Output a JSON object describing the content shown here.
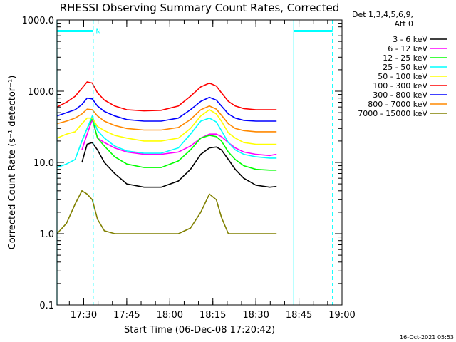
{
  "chart_data": {
    "type": "line",
    "title": "RHESSI Observing Summary Count Rates, Corrected",
    "xlabel": "Start Time (06-Dec-08 17:20:42)",
    "ylabel": "Corrected Count Rate (s⁻¹ detector⁻¹)",
    "y_scale": "log",
    "ylim": [
      0.1,
      1000.0
    ],
    "xlim": [
      17.345,
      19.0
    ],
    "grid": false,
    "legend_placement": "right",
    "legend_header": [
      "Det 1,3,4,5,6,9,",
      "Att 0"
    ],
    "yticks": [
      {
        "value": 1000.0,
        "label": "1000.0"
      },
      {
        "value": 100.0,
        "label": "100.0"
      },
      {
        "value": 10.0,
        "label": "10.0"
      },
      {
        "value": 1.0,
        "label": "1.0"
      },
      {
        "value": 0.1,
        "label": "0.1"
      }
    ],
    "xticks": [
      {
        "value": 17.5,
        "label": "17:30"
      },
      {
        "value": 17.75,
        "label": "17:45"
      },
      {
        "value": 18.0,
        "label": "18:00"
      },
      {
        "value": 18.25,
        "label": "18:15"
      },
      {
        "value": 18.5,
        "label": "18:30"
      },
      {
        "value": 18.75,
        "label": "18:45"
      },
      {
        "value": 19.0,
        "label": "19:00"
      }
    ],
    "x": [
      17.345,
      17.4,
      17.45,
      17.49,
      17.52,
      17.55,
      17.58,
      17.62,
      17.68,
      17.75,
      17.85,
      17.95,
      18.05,
      18.12,
      18.18,
      18.23,
      18.27,
      18.3,
      18.34,
      18.38,
      18.43,
      18.5,
      18.58,
      18.62
    ],
    "series": [
      {
        "name": "3 - 6 keV",
        "color": "#000000",
        "values": [
          null,
          null,
          null,
          10.0,
          18.0,
          19.0,
          15.0,
          10.0,
          7.0,
          5.0,
          4.5,
          4.5,
          5.5,
          8.0,
          13.0,
          16.0,
          16.5,
          15.0,
          11.0,
          8.0,
          6.0,
          4.8,
          4.5,
          4.6
        ]
      },
      {
        "name": "6 - 12 keV",
        "color": "#ff00ff",
        "values": [
          null,
          null,
          null,
          15.0,
          25.0,
          40.0,
          22.0,
          19.0,
          16.0,
          14.0,
          13.0,
          13.0,
          14.0,
          17.0,
          22.0,
          25.0,
          25.0,
          23.0,
          19.0,
          16.0,
          14.0,
          13.0,
          12.5,
          13.0
        ]
      },
      {
        "name": "12 - 25 keV",
        "color": "#00ff00",
        "values": [
          null,
          null,
          null,
          20.0,
          30.0,
          42.0,
          22.0,
          17.0,
          12.0,
          9.5,
          8.5,
          8.5,
          10.5,
          15.0,
          22.0,
          24.0,
          23.0,
          20.0,
          14.0,
          11.0,
          9.0,
          8.0,
          7.8,
          7.8
        ]
      },
      {
        "name": "25 - 50 keV",
        "color": "#00ffff",
        "values": [
          8.5,
          9.5,
          11.0,
          20.0,
          30.0,
          45.0,
          28.0,
          22.0,
          17.0,
          14.5,
          13.5,
          13.5,
          16.0,
          25.0,
          38.0,
          42.0,
          37.0,
          28.0,
          19.0,
          15.0,
          13.0,
          12.0,
          11.5,
          11.5
        ]
      },
      {
        "name": "50 - 100 keV",
        "color": "#ffff00",
        "values": [
          22.0,
          25.0,
          27.0,
          35.0,
          42.0,
          42.0,
          32.0,
          28.0,
          24.0,
          22.0,
          20.0,
          20.0,
          22.0,
          30.0,
          45.0,
          55.0,
          48.0,
          38.0,
          26.0,
          22.0,
          19.0,
          18.0,
          18.0,
          18.0
        ]
      },
      {
        "name": "100 - 300 keV",
        "color": "#ff0000",
        "values": [
          60.0,
          70.0,
          85.0,
          110.0,
          135.0,
          130.0,
          95.0,
          75.0,
          62.0,
          55.0,
          53.0,
          54.0,
          62.0,
          85.0,
          115.0,
          130.0,
          118.0,
          95.0,
          72.0,
          62.0,
          57.0,
          55.0,
          55.0,
          55.0
        ]
      },
      {
        "name": "300 - 800 keV",
        "color": "#0000ff",
        "values": [
          45.0,
          50.0,
          55.0,
          65.0,
          80.0,
          78.0,
          62.0,
          52.0,
          45.0,
          40.0,
          38.0,
          38.0,
          42.0,
          55.0,
          72.0,
          82.0,
          75.0,
          62.0,
          48.0,
          42.0,
          39.0,
          38.0,
          38.0,
          38.0
        ]
      },
      {
        "name": "800 - 7000 keV",
        "color": "#ff8800",
        "values": [
          35.0,
          38.0,
          42.0,
          48.0,
          56.0,
          55.0,
          45.0,
          38.0,
          33.0,
          30.0,
          28.5,
          28.5,
          31.0,
          40.0,
          55.0,
          62.0,
          56.0,
          46.0,
          35.0,
          30.0,
          28.0,
          27.0,
          27.0,
          27.0
        ]
      },
      {
        "name": "7000 - 15000 keV",
        "color": "#808000",
        "values": [
          1.0,
          1.4,
          2.6,
          4.0,
          3.6,
          3.0,
          1.6,
          1.1,
          1.0,
          1.0,
          1.0,
          1.0,
          1.0,
          1.2,
          2.0,
          3.6,
          3.0,
          1.7,
          1.0,
          1.0,
          1.0,
          1.0,
          1.0,
          1.0
        ]
      }
    ],
    "annotations": [
      {
        "type": "vline",
        "x": 17.345,
        "style": "solid",
        "color": "#00ffff"
      },
      {
        "type": "vline",
        "x": 17.555,
        "style": "dashed",
        "color": "#00ffff"
      },
      {
        "type": "vline",
        "x": 18.72,
        "style": "solid",
        "color": "#00ffff"
      },
      {
        "type": "vline",
        "x": 18.945,
        "style": "dashed",
        "color": "#00ffff"
      },
      {
        "type": "hspan",
        "x0": 17.345,
        "x1": 17.555,
        "y": 700,
        "color": "#00ffff"
      },
      {
        "type": "hspan",
        "x0": 18.72,
        "x1": 18.945,
        "y": 700,
        "color": "#00ffff"
      },
      {
        "type": "label",
        "x": 17.57,
        "y": 700,
        "text": "N",
        "color": "#00ffff"
      }
    ]
  },
  "footer": {
    "timestamp": "16-Oct-2021 05:53"
  }
}
